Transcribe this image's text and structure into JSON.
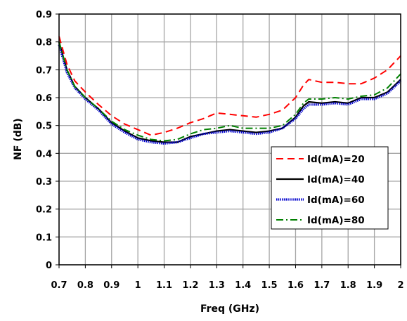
{
  "chart_data": {
    "type": "line",
    "title": "",
    "xlabel": "Freq (GHz)",
    "ylabel": "NF (dB)",
    "xlim": [
      0.7,
      2.0
    ],
    "ylim": [
      0,
      0.9
    ],
    "xticks": [
      "0.7",
      "0.8",
      "0.9",
      "1",
      "1.1",
      "1.2",
      "1.3",
      "1.4",
      "1.5",
      "1.6",
      "1.7",
      "1.8",
      "1.9",
      "2"
    ],
    "yticks": [
      "0",
      "0.1",
      "0.2",
      "0.3",
      "0.4",
      "0.5",
      "0.6",
      "0.7",
      "0.8",
      "0.9"
    ],
    "grid": true,
    "legend_position": "right",
    "series": [
      {
        "name": "Id(mA)=20",
        "color": "#ff0000",
        "style": "dashed",
        "points": [
          [
            0.7,
            0.82
          ],
          [
            0.73,
            0.72
          ],
          [
            0.76,
            0.66
          ],
          [
            0.8,
            0.62
          ],
          [
            0.85,
            0.575
          ],
          [
            0.9,
            0.535
          ],
          [
            0.95,
            0.505
          ],
          [
            1.0,
            0.485
          ],
          [
            1.05,
            0.465
          ],
          [
            1.1,
            0.475
          ],
          [
            1.15,
            0.49
          ],
          [
            1.2,
            0.51
          ],
          [
            1.25,
            0.525
          ],
          [
            1.3,
            0.545
          ],
          [
            1.35,
            0.54
          ],
          [
            1.4,
            0.535
          ],
          [
            1.45,
            0.53
          ],
          [
            1.5,
            0.54
          ],
          [
            1.55,
            0.555
          ],
          [
            1.6,
            0.6
          ],
          [
            1.63,
            0.645
          ],
          [
            1.65,
            0.665
          ],
          [
            1.7,
            0.655
          ],
          [
            1.75,
            0.655
          ],
          [
            1.8,
            0.65
          ],
          [
            1.85,
            0.65
          ],
          [
            1.9,
            0.67
          ],
          [
            1.95,
            0.7
          ],
          [
            2.0,
            0.75
          ]
        ]
      },
      {
        "name": "Id(mA)=40",
        "color": "#000000",
        "style": "solid",
        "points": [
          [
            0.7,
            0.8
          ],
          [
            0.73,
            0.7
          ],
          [
            0.76,
            0.64
          ],
          [
            0.8,
            0.6
          ],
          [
            0.85,
            0.56
          ],
          [
            0.9,
            0.51
          ],
          [
            0.95,
            0.48
          ],
          [
            1.0,
            0.455
          ],
          [
            1.05,
            0.445
          ],
          [
            1.1,
            0.44
          ],
          [
            1.15,
            0.44
          ],
          [
            1.2,
            0.46
          ],
          [
            1.25,
            0.47
          ],
          [
            1.3,
            0.48
          ],
          [
            1.35,
            0.485
          ],
          [
            1.4,
            0.48
          ],
          [
            1.45,
            0.475
          ],
          [
            1.5,
            0.48
          ],
          [
            1.55,
            0.49
          ],
          [
            1.6,
            0.53
          ],
          [
            1.63,
            0.57
          ],
          [
            1.65,
            0.585
          ],
          [
            1.7,
            0.58
          ],
          [
            1.75,
            0.585
          ],
          [
            1.8,
            0.58
          ],
          [
            1.85,
            0.6
          ],
          [
            1.9,
            0.6
          ],
          [
            1.95,
            0.62
          ],
          [
            2.0,
            0.665
          ]
        ]
      },
      {
        "name": "Id(mA)=60",
        "color": "#0000cc",
        "style": "dotted",
        "points": [
          [
            0.7,
            0.79
          ],
          [
            0.73,
            0.69
          ],
          [
            0.76,
            0.635
          ],
          [
            0.8,
            0.595
          ],
          [
            0.85,
            0.555
          ],
          [
            0.9,
            0.505
          ],
          [
            0.95,
            0.475
          ],
          [
            1.0,
            0.45
          ],
          [
            1.05,
            0.44
          ],
          [
            1.1,
            0.435
          ],
          [
            1.15,
            0.44
          ],
          [
            1.2,
            0.455
          ],
          [
            1.25,
            0.47
          ],
          [
            1.3,
            0.475
          ],
          [
            1.35,
            0.48
          ],
          [
            1.4,
            0.475
          ],
          [
            1.45,
            0.47
          ],
          [
            1.5,
            0.475
          ],
          [
            1.55,
            0.49
          ],
          [
            1.6,
            0.525
          ],
          [
            1.63,
            0.56
          ],
          [
            1.65,
            0.575
          ],
          [
            1.7,
            0.575
          ],
          [
            1.75,
            0.58
          ],
          [
            1.8,
            0.575
          ],
          [
            1.85,
            0.595
          ],
          [
            1.9,
            0.595
          ],
          [
            1.95,
            0.615
          ],
          [
            2.0,
            0.66
          ]
        ]
      },
      {
        "name": "Id(mA)=80",
        "color": "#008000",
        "style": "dashdot",
        "points": [
          [
            0.7,
            0.8
          ],
          [
            0.73,
            0.7
          ],
          [
            0.76,
            0.64
          ],
          [
            0.8,
            0.6
          ],
          [
            0.85,
            0.56
          ],
          [
            0.9,
            0.515
          ],
          [
            0.95,
            0.485
          ],
          [
            1.0,
            0.465
          ],
          [
            1.05,
            0.45
          ],
          [
            1.1,
            0.445
          ],
          [
            1.15,
            0.45
          ],
          [
            1.2,
            0.47
          ],
          [
            1.25,
            0.485
          ],
          [
            1.3,
            0.49
          ],
          [
            1.35,
            0.5
          ],
          [
            1.4,
            0.49
          ],
          [
            1.45,
            0.49
          ],
          [
            1.5,
            0.49
          ],
          [
            1.55,
            0.5
          ],
          [
            1.6,
            0.54
          ],
          [
            1.63,
            0.58
          ],
          [
            1.65,
            0.595
          ],
          [
            1.7,
            0.595
          ],
          [
            1.75,
            0.6
          ],
          [
            1.8,
            0.595
          ],
          [
            1.85,
            0.605
          ],
          [
            1.9,
            0.61
          ],
          [
            1.95,
            0.635
          ],
          [
            2.0,
            0.685
          ]
        ]
      }
    ]
  }
}
